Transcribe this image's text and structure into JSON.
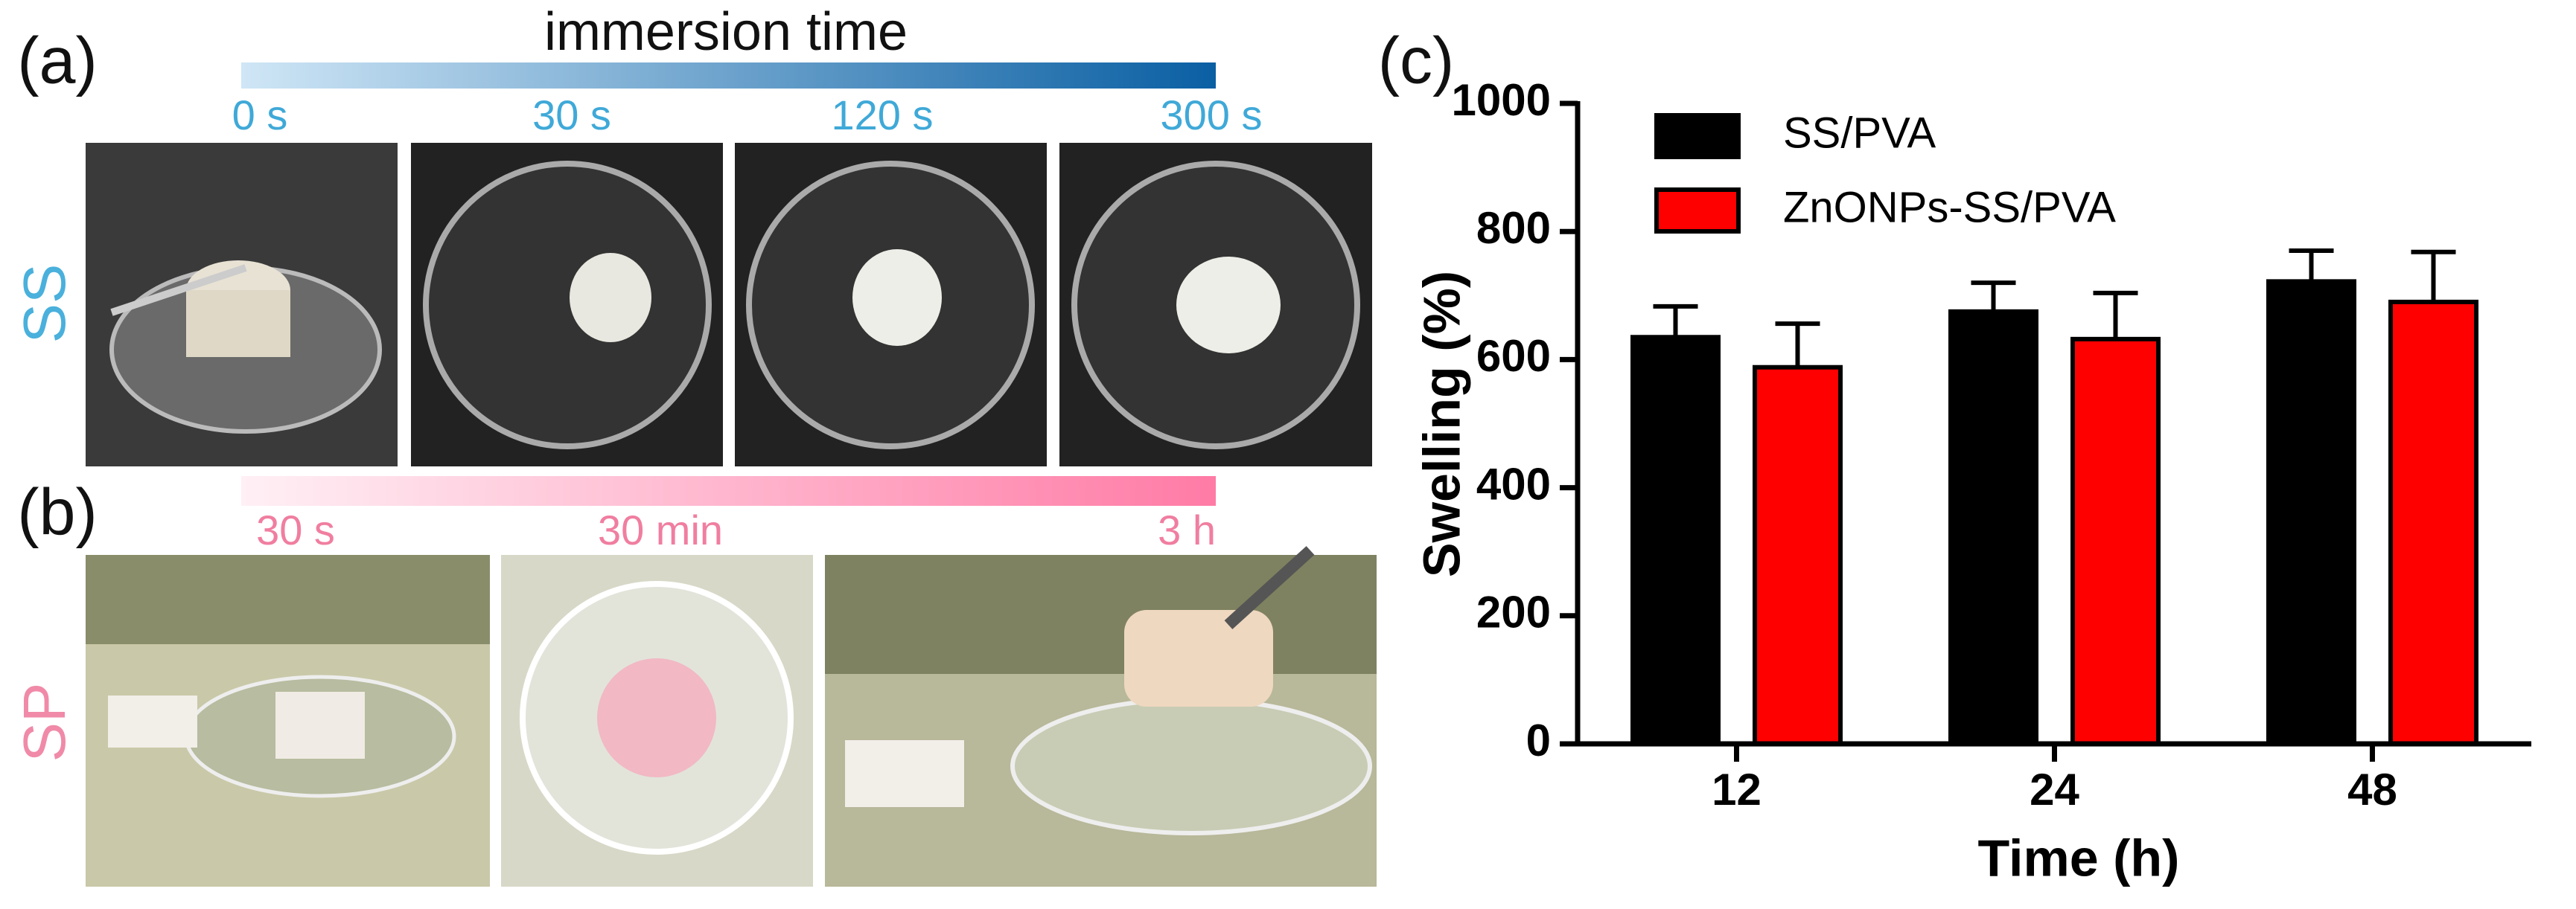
{
  "panel_a": {
    "label": "(a)",
    "heading": "immersion time",
    "times": [
      "0 s",
      "30 s",
      "120 s",
      "300 s"
    ],
    "row_label": "SS"
  },
  "panel_b": {
    "label": "(b)",
    "times": [
      "30 s",
      "30 min",
      "3 h"
    ],
    "row_label": "SP"
  },
  "chart_data": {
    "type": "bar",
    "label": "(c)",
    "x_label": "Time (h)",
    "y_label": "Swelling (%)",
    "categories": [
      "12",
      "24",
      "48"
    ],
    "series": [
      {
        "name": "SS/PVA",
        "color": "#000000",
        "values": [
          635,
          675,
          722
        ],
        "errors": [
          48,
          45,
          48
        ]
      },
      {
        "name": "ZnONPs-SS/PVA",
        "color": "#ff0000",
        "values": [
          588,
          632,
          690
        ],
        "errors": [
          68,
          72,
          78
        ]
      }
    ],
    "ylim": [
      0,
      1000
    ],
    "yticks": [
      0,
      200,
      400,
      600,
      800,
      1000
    ],
    "grid": false,
    "legend": "top-left"
  }
}
